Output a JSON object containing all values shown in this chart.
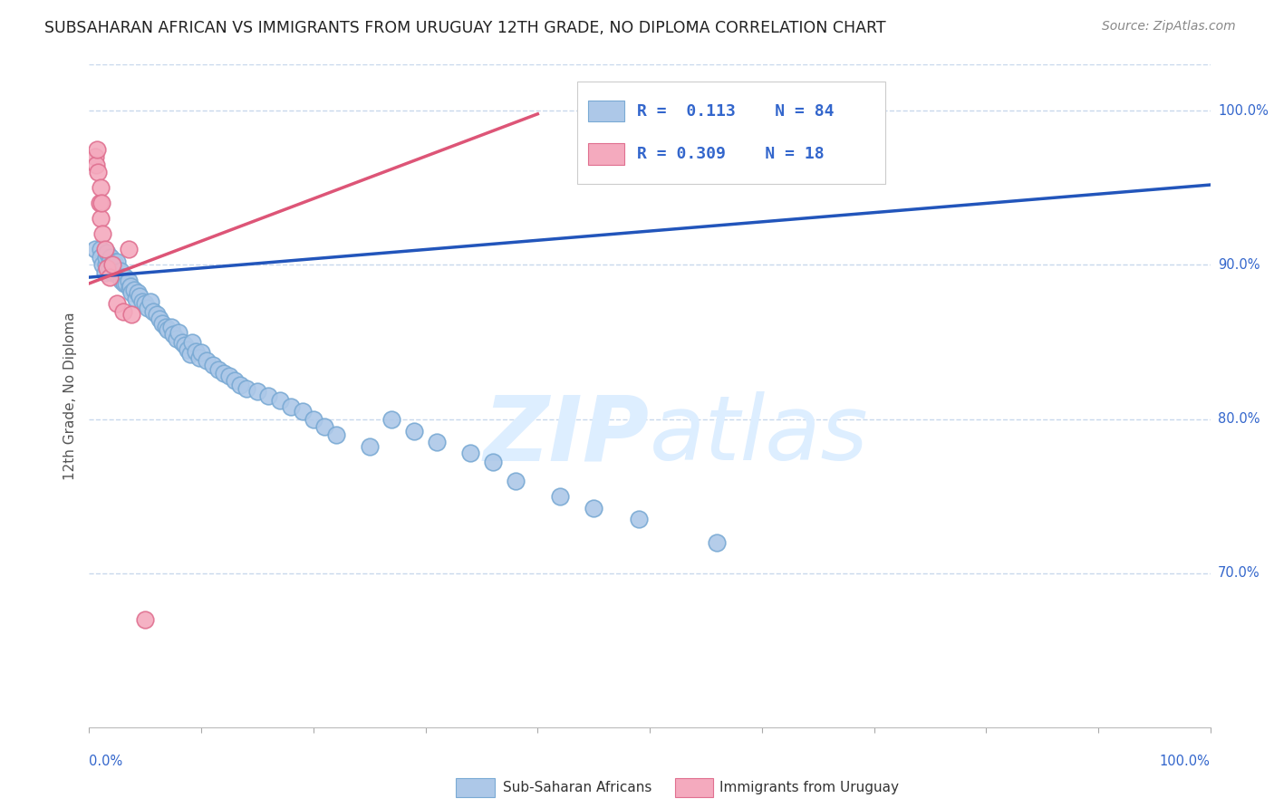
{
  "title": "SUBSAHARAN AFRICAN VS IMMIGRANTS FROM URUGUAY 12TH GRADE, NO DIPLOMA CORRELATION CHART",
  "source": "Source: ZipAtlas.com",
  "ylabel": "12th Grade, No Diploma",
  "xlim": [
    0.0,
    1.0
  ],
  "ylim": [
    0.6,
    1.03
  ],
  "blue_R": 0.113,
  "blue_N": 84,
  "pink_R": 0.309,
  "pink_N": 18,
  "blue_color": "#adc8e8",
  "pink_color": "#f4aabe",
  "blue_edge_color": "#7aaad4",
  "pink_edge_color": "#e07090",
  "blue_line_color": "#2255bb",
  "pink_line_color": "#dd5577",
  "legend_text_color": "#3366cc",
  "background_color": "#ffffff",
  "grid_color": "#c8d8ec",
  "watermark_color": "#ddeeff",
  "blue_line_x0": 0.0,
  "blue_line_y0": 0.892,
  "blue_line_x1": 1.0,
  "blue_line_y1": 0.952,
  "pink_line_x0": 0.0,
  "pink_line_y0": 0.888,
  "pink_line_x1": 0.4,
  "pink_line_y1": 0.998,
  "blue_scatter_x": [
    0.005,
    0.01,
    0.01,
    0.012,
    0.014,
    0.015,
    0.015,
    0.016,
    0.018,
    0.018,
    0.019,
    0.02,
    0.021,
    0.022,
    0.022,
    0.023,
    0.024,
    0.025,
    0.025,
    0.026,
    0.027,
    0.028,
    0.029,
    0.03,
    0.031,
    0.032,
    0.033,
    0.035,
    0.036,
    0.037,
    0.038,
    0.04,
    0.042,
    0.043,
    0.045,
    0.047,
    0.05,
    0.052,
    0.055,
    0.057,
    0.06,
    0.063,
    0.065,
    0.068,
    0.07,
    0.073,
    0.075,
    0.078,
    0.08,
    0.083,
    0.085,
    0.088,
    0.09,
    0.092,
    0.095,
    0.098,
    0.1,
    0.105,
    0.11,
    0.115,
    0.12,
    0.125,
    0.13,
    0.135,
    0.14,
    0.15,
    0.16,
    0.17,
    0.18,
    0.19,
    0.2,
    0.21,
    0.22,
    0.25,
    0.27,
    0.29,
    0.31,
    0.34,
    0.36,
    0.38,
    0.42,
    0.45,
    0.49,
    0.56
  ],
  "blue_scatter_y": [
    0.91,
    0.91,
    0.905,
    0.9,
    0.895,
    0.9,
    0.905,
    0.908,
    0.898,
    0.903,
    0.905,
    0.9,
    0.895,
    0.897,
    0.902,
    0.9,
    0.895,
    0.896,
    0.902,
    0.893,
    0.895,
    0.896,
    0.89,
    0.892,
    0.888,
    0.892,
    0.888,
    0.89,
    0.885,
    0.886,
    0.882,
    0.884,
    0.878,
    0.882,
    0.88,
    0.876,
    0.875,
    0.872,
    0.876,
    0.87,
    0.868,
    0.865,
    0.862,
    0.86,
    0.858,
    0.86,
    0.855,
    0.852,
    0.856,
    0.85,
    0.848,
    0.845,
    0.842,
    0.85,
    0.844,
    0.84,
    0.843,
    0.838,
    0.835,
    0.832,
    0.83,
    0.828,
    0.825,
    0.822,
    0.82,
    0.818,
    0.815,
    0.812,
    0.808,
    0.805,
    0.8,
    0.795,
    0.79,
    0.782,
    0.8,
    0.792,
    0.785,
    0.778,
    0.772,
    0.76,
    0.75,
    0.742,
    0.735,
    0.72
  ],
  "pink_scatter_x": [
    0.005,
    0.006,
    0.007,
    0.008,
    0.009,
    0.01,
    0.01,
    0.011,
    0.012,
    0.014,
    0.016,
    0.018,
    0.021,
    0.025,
    0.03,
    0.035,
    0.038,
    0.05
  ],
  "pink_scatter_y": [
    0.97,
    0.965,
    0.975,
    0.96,
    0.94,
    0.95,
    0.93,
    0.94,
    0.92,
    0.91,
    0.898,
    0.892,
    0.9,
    0.875,
    0.87,
    0.91,
    0.868,
    0.67
  ],
  "y_tick_positions": [
    0.7,
    0.8,
    0.9,
    1.0
  ],
  "y_tick_labels": [
    "70.0%",
    "80.0%",
    "90.0%",
    "100.0%"
  ],
  "x_tick_positions": [
    0.0,
    0.1,
    0.2,
    0.3,
    0.4,
    0.5,
    0.6,
    0.7,
    0.8,
    0.9,
    1.0
  ],
  "legend_label_blue": "Sub-Saharan Africans",
  "legend_label_pink": "Immigrants from Uruguay"
}
